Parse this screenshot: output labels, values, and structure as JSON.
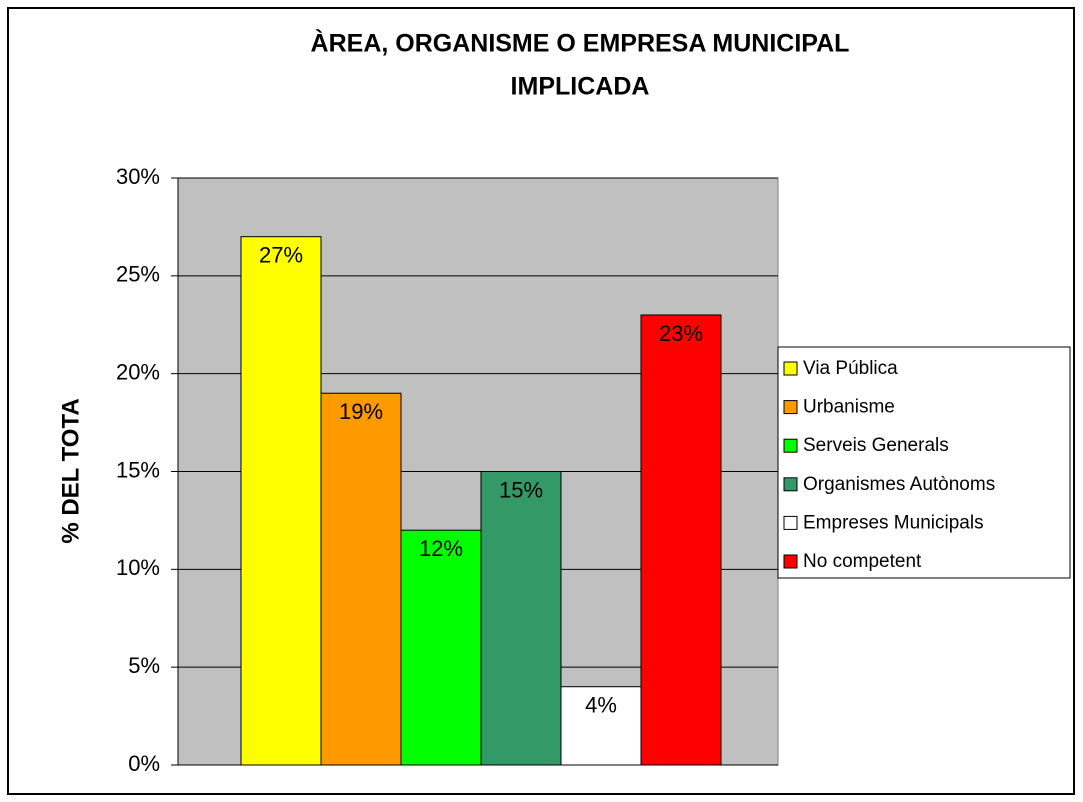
{
  "chart_data": {
    "type": "bar",
    "title": [
      "ÀREA, ORGANISME O EMPRESA MUNICIPAL",
      "IMPLICADA"
    ],
    "y_label": "% DEL TOTA",
    "ylim": [
      0,
      30
    ],
    "yticks": [
      {
        "value": 0,
        "label": "0%"
      },
      {
        "value": 5,
        "label": "5%"
      },
      {
        "value": 10,
        "label": "10%"
      },
      {
        "value": 15,
        "label": "15%"
      },
      {
        "value": 20,
        "label": "20%"
      },
      {
        "value": 25,
        "label": "25%"
      },
      {
        "value": 30,
        "label": "30%"
      }
    ],
    "grid": true,
    "legend": "right",
    "series": [
      {
        "name": "Via Pública",
        "color": "#ffff00",
        "values": [
          27
        ],
        "value_labels": [
          "27%"
        ]
      },
      {
        "name": "Urbanisme",
        "color": "#ff9900",
        "values": [
          19
        ],
        "value_labels": [
          "19%"
        ]
      },
      {
        "name": "Serveis Generals",
        "color": "#00ff00",
        "values": [
          12
        ],
        "value_labels": [
          "12%"
        ]
      },
      {
        "name": "Organismes Autònoms",
        "color": "#339966",
        "values": [
          15
        ],
        "value_labels": [
          "15%"
        ]
      },
      {
        "name": "Empreses Municipals",
        "color": "#ffffff",
        "values": [
          4
        ],
        "value_labels": [
          "4%"
        ]
      },
      {
        "name": "No competent",
        "color": "#ff0000",
        "values": [
          23
        ],
        "value_labels": [
          "23%"
        ]
      }
    ]
  }
}
